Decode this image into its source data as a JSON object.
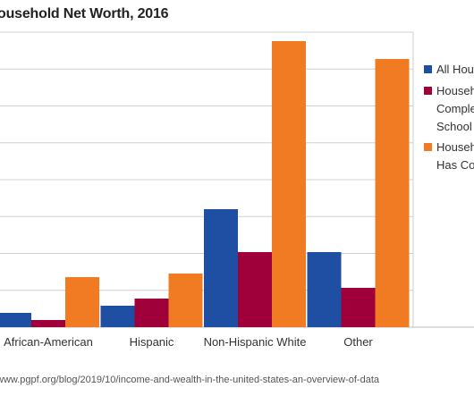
{
  "title": "ousehold Net Worth, 2016",
  "source": "www.pgpf.org/blog/2019/10/income-and-wealth-in-the-united-states-an-overview-of-data",
  "chart_data": {
    "type": "bar",
    "title": "ousehold Net Worth, 2016",
    "categories": [
      "African-American",
      "Hispanic",
      "Non-Hispanic White",
      "Other"
    ],
    "series": [
      {
        "name": "All Hou",
        "color": "#1f4fa3",
        "values": [
          0.4,
          0.6,
          3.3,
          2.1
        ]
      },
      {
        "name": "Househ Comple School",
        "color": "#a0003a",
        "values": [
          0.2,
          0.8,
          2.1,
          1.1
        ]
      },
      {
        "name": "Househ Has Co",
        "color": "#f07b22",
        "values": [
          1.4,
          1.5,
          8.0,
          7.5
        ]
      }
    ],
    "legend": [
      {
        "lines": [
          "All Hou"
        ],
        "color": "#1f4fa3"
      },
      {
        "lines": [
          "Househ",
          "Comple",
          "School"
        ],
        "color": "#a0003a"
      },
      {
        "lines": [
          "Househ",
          "Has Co"
        ],
        "color": "#f07b22"
      }
    ],
    "ylim": [
      0,
      8.25
    ],
    "gridlines": 8,
    "grid": true,
    "legend_position": "right"
  }
}
